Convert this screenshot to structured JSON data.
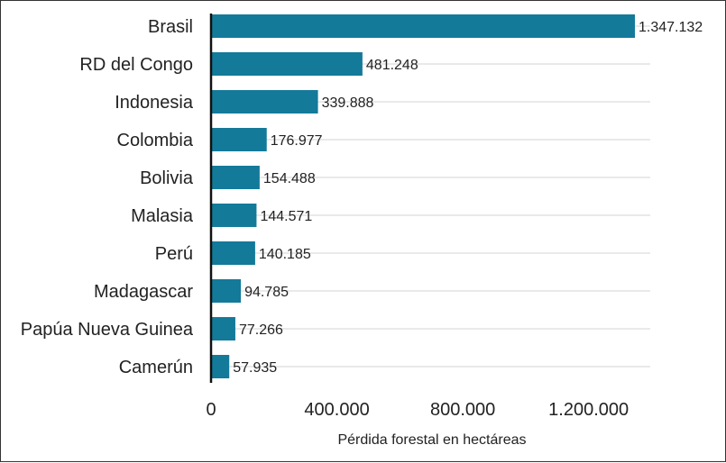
{
  "chart_data": {
    "type": "bar",
    "orientation": "horizontal",
    "categories": [
      "Brasil",
      "RD del Congo",
      "Indonesia",
      "Colombia",
      "Bolivia",
      "Malasia",
      "Perú",
      "Madagascar",
      "Papúa Nueva Guinea",
      "Camerún"
    ],
    "values": [
      1347132,
      481248,
      339888,
      176977,
      154488,
      144571,
      140185,
      94785,
      77266,
      57935
    ],
    "value_labels": [
      "1.347.132",
      "481.248",
      "339.888",
      "176.977",
      "154.488",
      "144.571",
      "140.185",
      "94.785",
      "77.266",
      "57.935"
    ],
    "title": "",
    "xlabel": "Pérdida forestal en hectáreas",
    "ylabel": "",
    "xlim": [
      0,
      1400000
    ],
    "x_ticks": [
      0,
      400000,
      800000,
      1200000
    ],
    "x_tick_labels": [
      "0",
      "400.000",
      "800.000",
      "1.200.000"
    ],
    "grid": "horizontal lines per category",
    "legend": "none",
    "bar_color": "#137a9a"
  }
}
